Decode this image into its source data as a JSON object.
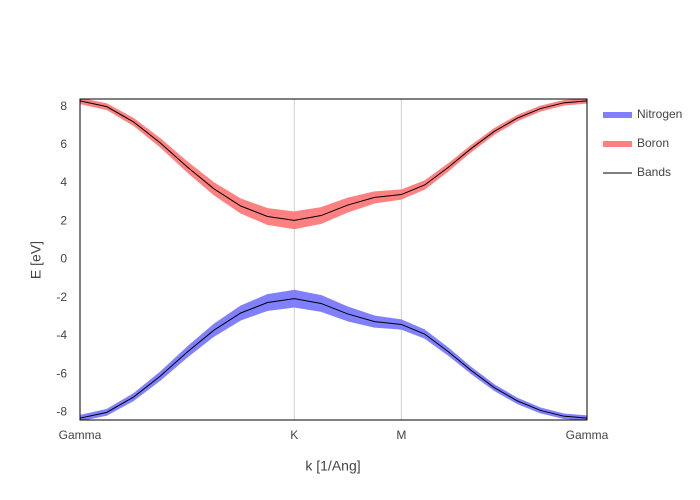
{
  "chart_data": {
    "type": "fatband",
    "xlabel": "k [1/Ang]",
    "ylabel": "E [eV]",
    "x": [
      0,
      0.2095,
      0.419,
      0.6285,
      0.838,
      1.0475,
      1.257,
      1.4665,
      1.676,
      1.885,
      2.094,
      2.304,
      2.513,
      2.695,
      2.876,
      3.058,
      3.239,
      3.42,
      3.602,
      3.783,
      3.965
    ],
    "xlim": [
      0,
      3.965
    ],
    "xticks": [
      {
        "value": 0,
        "label": "Gamma"
      },
      {
        "value": 1.676,
        "label": "K"
      },
      {
        "value": 2.513,
        "label": "M"
      },
      {
        "value": 3.965,
        "label": "Gamma"
      }
    ],
    "ylim": [
      -8.4,
      8.4
    ],
    "yticks": [
      -8,
      -6,
      -4,
      -2,
      0,
      2,
      4,
      6,
      8
    ],
    "xgrid": true,
    "series": [
      {
        "name": "Nitrogen",
        "color": "#8080ff",
        "values": [
          -8.3,
          -8.0,
          -7.2,
          -6.1,
          -4.85,
          -3.7,
          -2.8,
          -2.25,
          -2.05,
          -2.3,
          -2.85,
          -3.25,
          -3.4,
          -3.9,
          -4.8,
          -5.8,
          -6.7,
          -7.4,
          -7.9,
          -8.2,
          -8.3
        ],
        "widths": [
          0.3,
          0.32,
          0.38,
          0.45,
          0.55,
          0.65,
          0.75,
          0.85,
          0.9,
          0.85,
          0.75,
          0.6,
          0.5,
          0.45,
          0.4,
          0.35,
          0.32,
          0.3,
          0.28,
          0.25,
          0.25
        ]
      },
      {
        "name": "Boron",
        "color": "#ff8080",
        "values": [
          8.3,
          8.0,
          7.2,
          6.1,
          4.85,
          3.7,
          2.8,
          2.25,
          2.05,
          2.3,
          2.85,
          3.25,
          3.4,
          3.9,
          4.8,
          5.8,
          6.7,
          7.4,
          7.9,
          8.2,
          8.3
        ],
        "widths": [
          0.3,
          0.32,
          0.38,
          0.45,
          0.55,
          0.65,
          0.75,
          0.85,
          0.9,
          0.85,
          0.75,
          0.6,
          0.5,
          0.45,
          0.4,
          0.35,
          0.32,
          0.3,
          0.28,
          0.25,
          0.25
        ]
      },
      {
        "name": "Bands",
        "color": "#000000",
        "lines": [
          [
            8.3,
            8.0,
            7.2,
            6.1,
            4.85,
            3.7,
            2.8,
            2.25,
            2.05,
            2.3,
            2.85,
            3.25,
            3.4,
            3.9,
            4.8,
            5.8,
            6.7,
            7.4,
            7.9,
            8.2,
            8.3
          ],
          [
            -8.3,
            -8.0,
            -7.2,
            -6.1,
            -4.85,
            -3.7,
            -2.8,
            -2.25,
            -2.05,
            -2.3,
            -2.85,
            -3.25,
            -3.4,
            -3.9,
            -4.8,
            -5.8,
            -6.7,
            -7.4,
            -7.9,
            -8.2,
            -8.3
          ]
        ]
      }
    ]
  }
}
